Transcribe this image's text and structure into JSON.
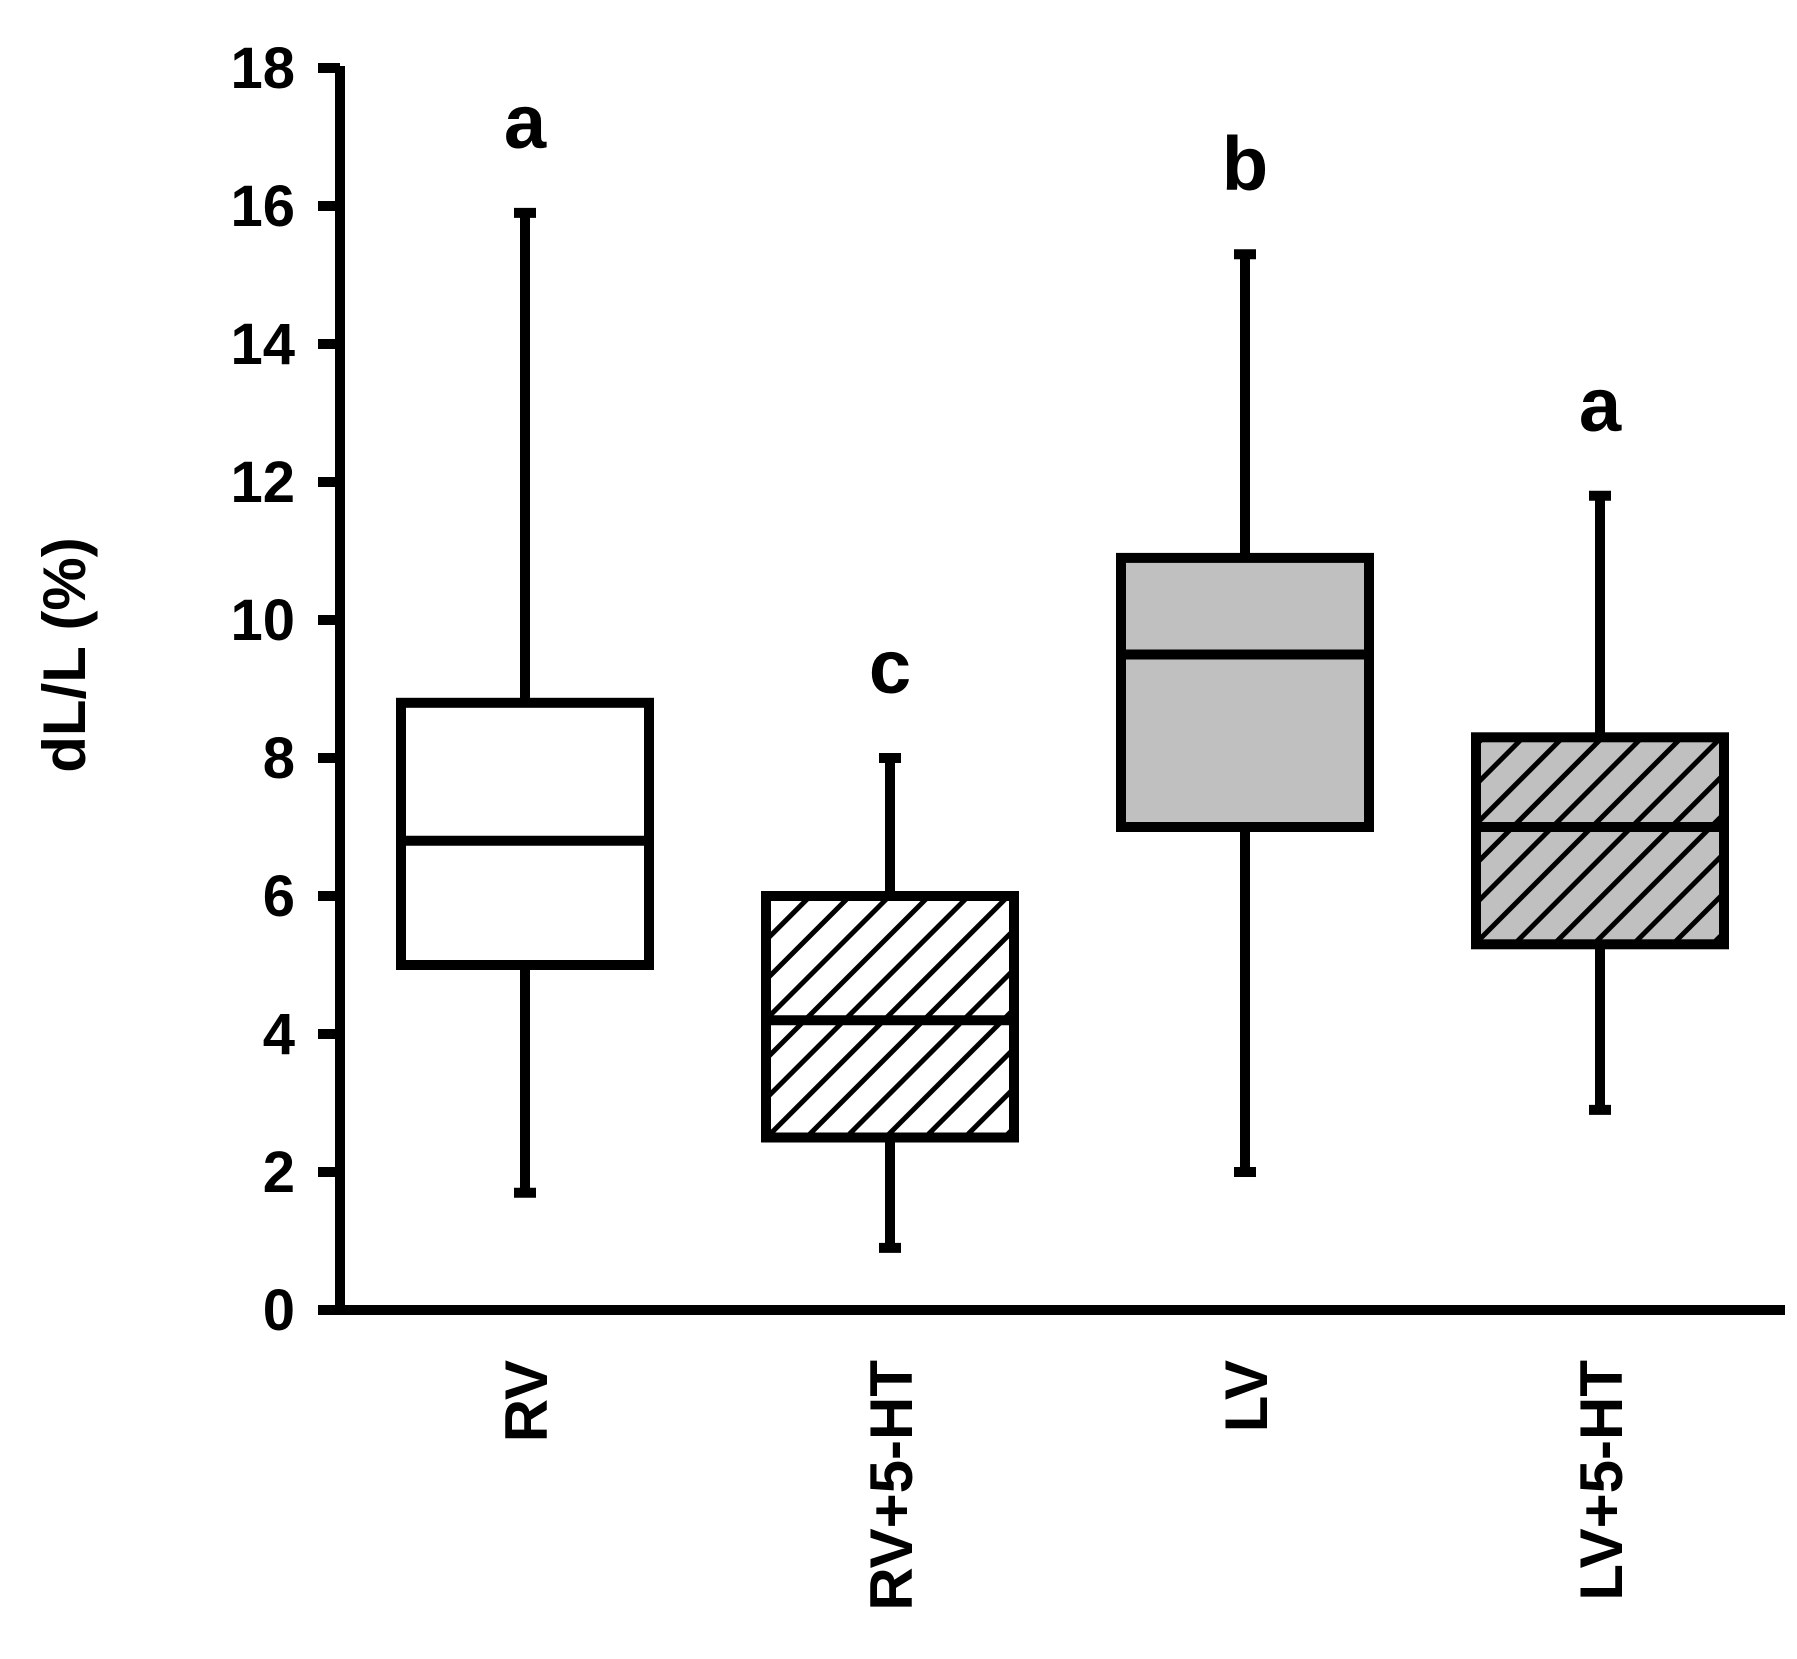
{
  "chart_data": {
    "type": "box",
    "title": "",
    "xlabel": "",
    "ylabel": "dL/L (%)",
    "ylim": [
      0,
      18
    ],
    "yticks": [
      "0",
      "2",
      "4",
      "6",
      "8",
      "10",
      "12",
      "14",
      "16",
      "18"
    ],
    "grid": false,
    "legend": "none",
    "categories": [
      "RV",
      "RV+5-HT",
      "LV",
      "LV+5-HT"
    ],
    "boxes": [
      {
        "category": "RV",
        "min": 1.7,
        "q1": 5.0,
        "median": 6.8,
        "q3": 8.8,
        "max": 15.9,
        "fill": "white",
        "hatched": false,
        "significance": "a"
      },
      {
        "category": "RV+5-HT",
        "min": 0.9,
        "q1": 2.5,
        "median": 4.2,
        "q3": 6.0,
        "max": 8.0,
        "fill": "white",
        "hatched": true,
        "significance": "c"
      },
      {
        "category": "LV",
        "min": 2.0,
        "q1": 7.0,
        "median": 9.5,
        "q3": 10.9,
        "max": 15.3,
        "fill": "gray",
        "hatched": false,
        "significance": "b"
      },
      {
        "category": "LV+5-HT",
        "min": 2.9,
        "q1": 5.3,
        "median": 7.0,
        "q3": 8.3,
        "max": 11.8,
        "fill": "gray",
        "hatched": true,
        "significance": "a"
      }
    ],
    "colors": {
      "gray": "#c0c0c0",
      "white": "#ffffff",
      "ink": "#000000"
    }
  }
}
